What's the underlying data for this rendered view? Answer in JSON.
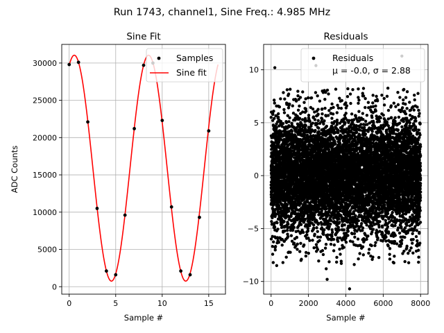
{
  "figure": {
    "suptitle": "Run 1743, channel1, Sine Freq.: 4.985 MHz"
  },
  "chart_data": [
    {
      "type": "scatter",
      "title": "Sine Fit",
      "xlabel": "Sample #",
      "ylabel": "ADC Counts",
      "xlim": [
        -0.8,
        16.8
      ],
      "ylim": [
        -1000,
        32500
      ],
      "xticks": [
        0,
        5,
        10,
        15
      ],
      "yticks": [
        0,
        5000,
        10000,
        15000,
        20000,
        25000,
        30000
      ],
      "grid": true,
      "legend": {
        "placement": "top-right",
        "entries": [
          "Samples",
          "Sine fit"
        ]
      },
      "series": [
        {
          "name": "Samples",
          "kind": "scatter",
          "color": "#000000",
          "x": [
            0,
            1,
            2,
            3,
            4,
            5,
            6,
            7,
            8,
            9,
            10,
            11,
            12,
            13,
            14,
            15
          ],
          "y": [
            29800,
            30100,
            22100,
            10500,
            2100,
            1600,
            9600,
            21200,
            29700,
            30000,
            22300,
            10700,
            2100,
            1600,
            9300,
            20900
          ]
        },
        {
          "name": "Sine fit",
          "kind": "line",
          "color": "#ff0000",
          "model": {
            "offset": 15900,
            "amplitude": 15150,
            "period": 7.985,
            "peak_x": 0.55
          },
          "x_range": [
            0,
            16
          ]
        }
      ]
    },
    {
      "type": "scatter",
      "title": "Residuals",
      "xlabel": "Sample #",
      "ylabel": "",
      "xlim": [
        -400,
        8400
      ],
      "ylim": [
        -11.2,
        12.4
      ],
      "xticks": [
        0,
        2000,
        4000,
        6000,
        8000
      ],
      "yticks": [
        -10,
        -5,
        0,
        5,
        10
      ],
      "grid": true,
      "legend": {
        "placement": "top-right",
        "entries": [
          "Residuals",
          "μ = -0.0, σ = 2.88"
        ]
      },
      "series": [
        {
          "name": "Residuals",
          "color": "#000000",
          "mean": -0.0,
          "sigma": 2.88,
          "n": 8000,
          "outliers": [
            [
              200,
              10.2
            ],
            [
              2400,
              10.4
            ],
            [
              7000,
              11.3
            ],
            [
              3000,
              -9.8
            ],
            [
              4200,
              -10.7
            ],
            [
              300,
              -8.5
            ],
            [
              2950,
              -8.8
            ],
            [
              4450,
              -8.4
            ]
          ]
        }
      ]
    }
  ]
}
